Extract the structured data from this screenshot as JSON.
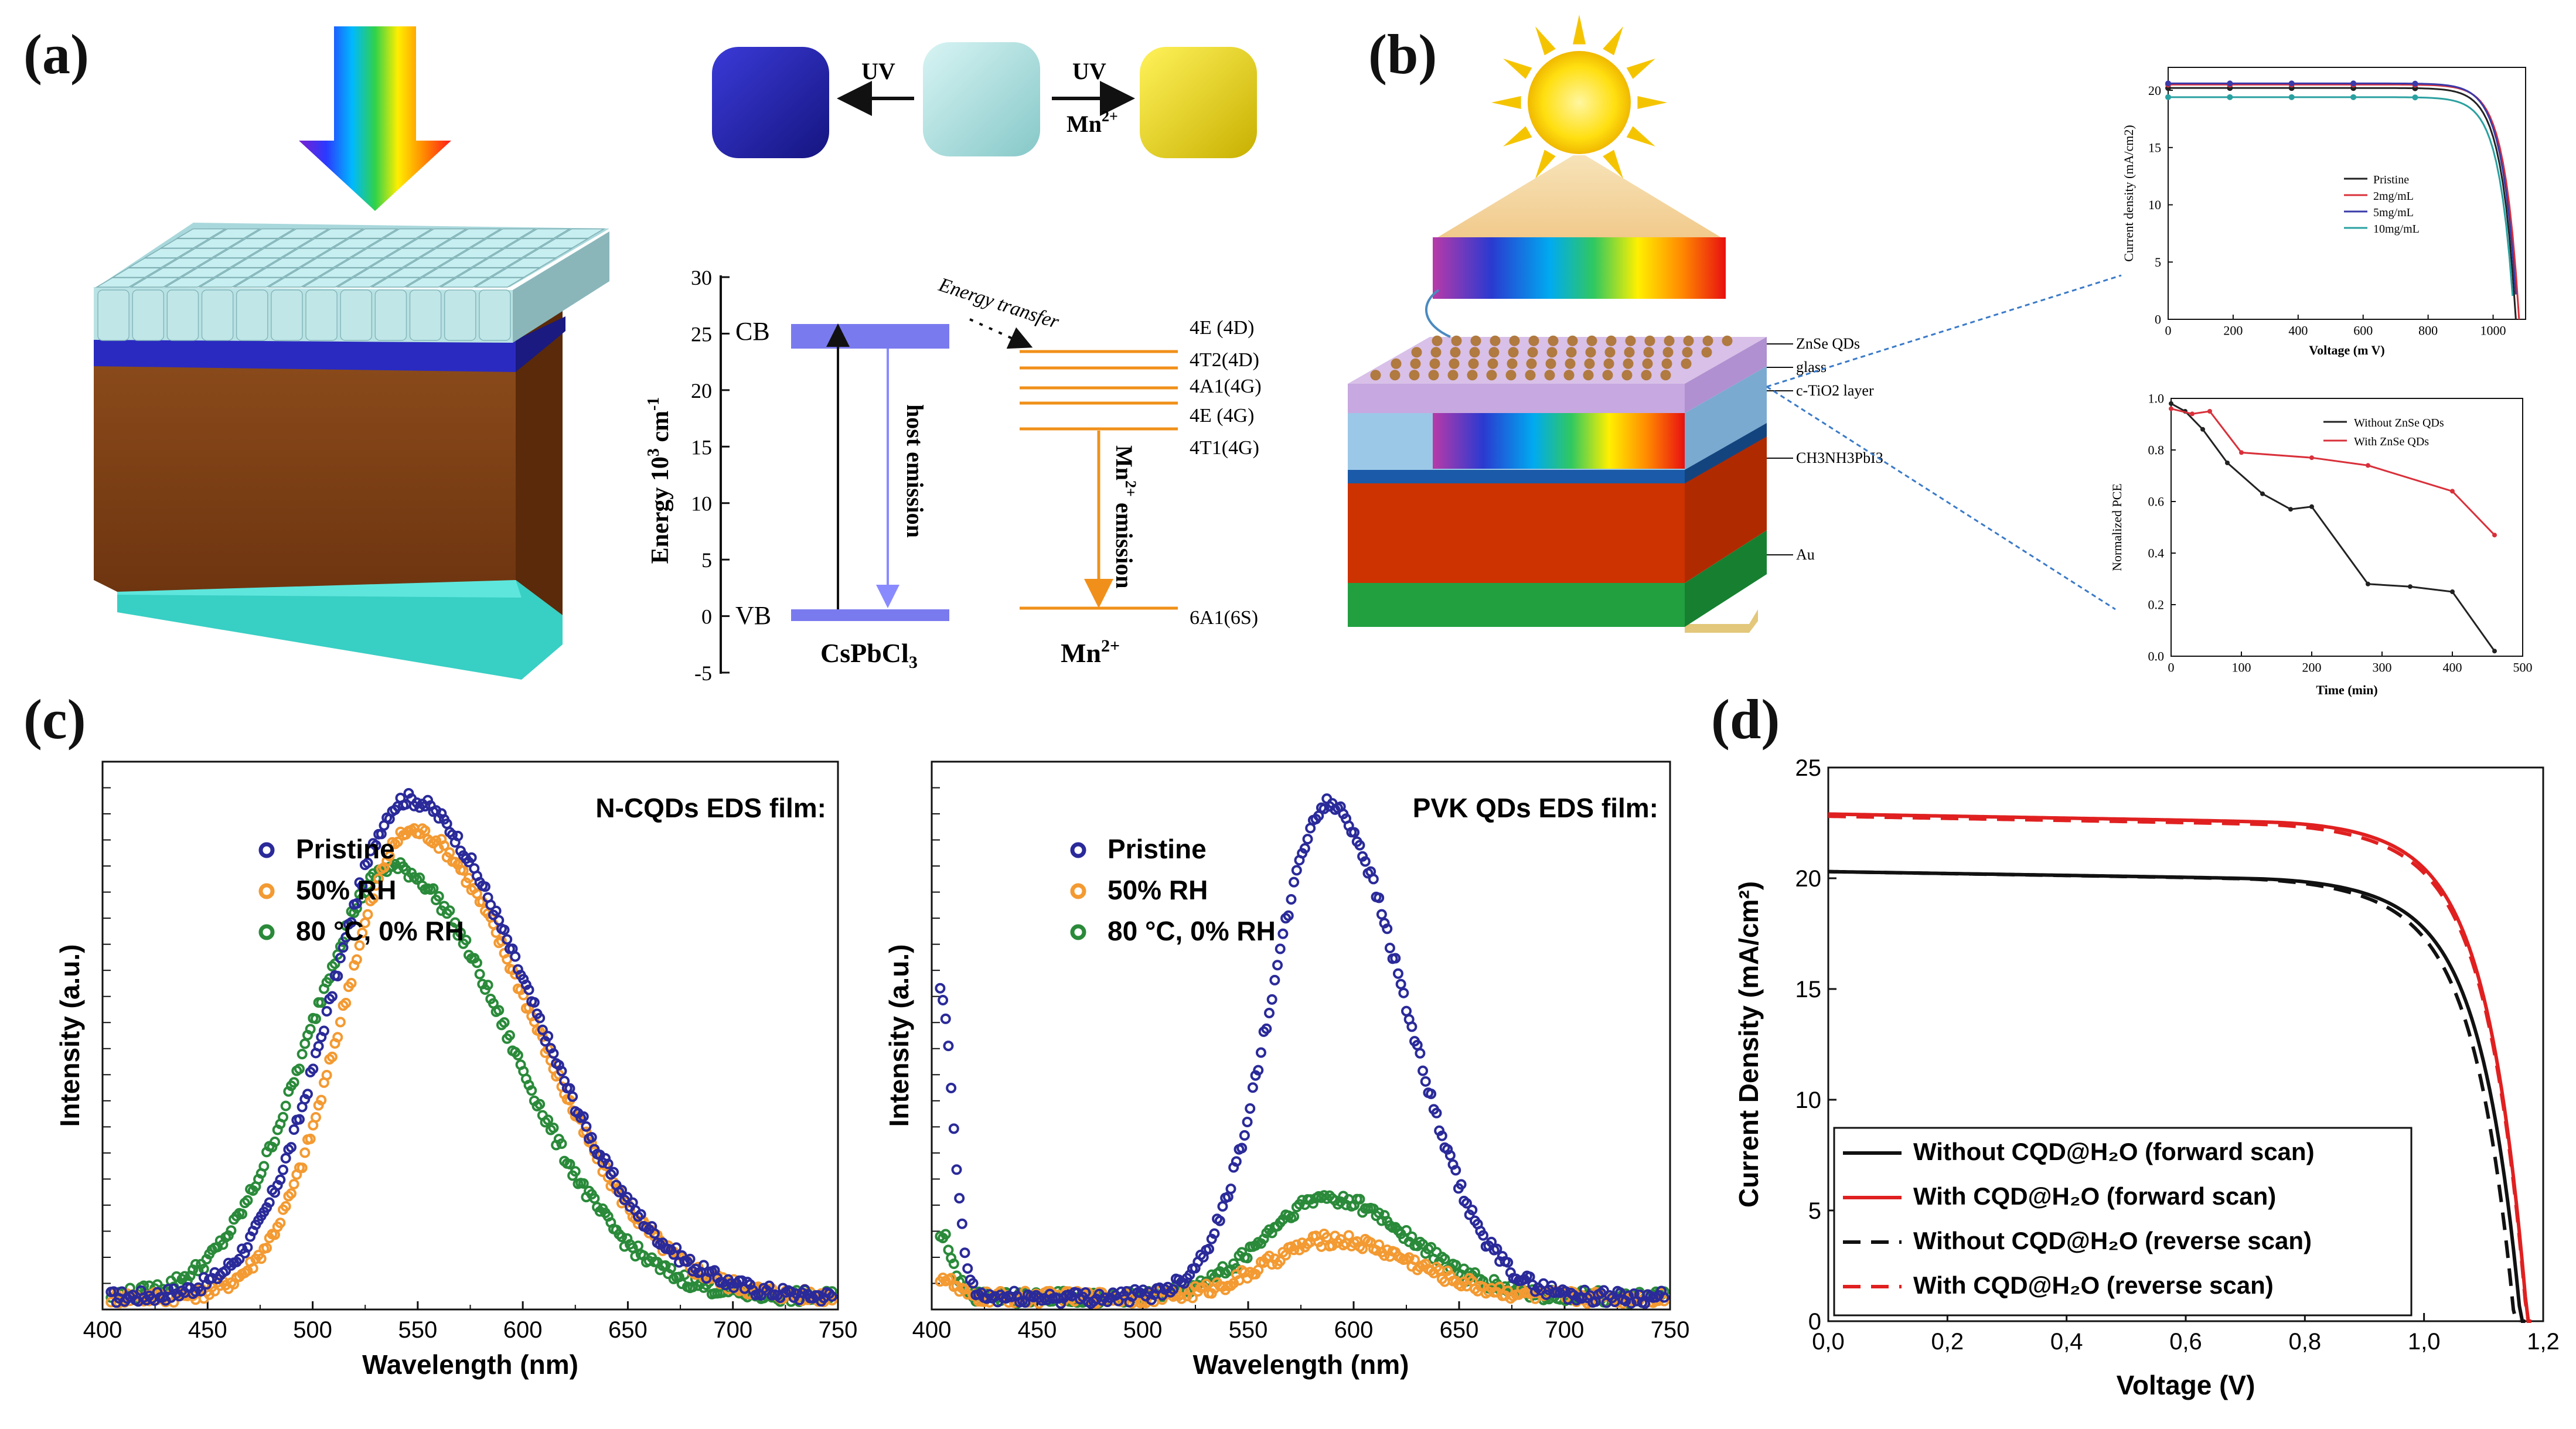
{
  "panels": {
    "a": {
      "label": "(a)",
      "transform_uv_left": "UV",
      "transform_uv_right": "UV",
      "transform_mn": "Mn",
      "transform_mn_sup": "2+",
      "energy_axis_label": "Energy 10",
      "energy_axis_label_sup": "3",
      "energy_axis_label_unit": " cm",
      "energy_axis_label_sup2": "-1",
      "energy_ticks": [
        "30",
        "25",
        "20",
        "15",
        "10",
        "5",
        "0",
        "-5"
      ],
      "cb": "CB",
      "vb": "VB",
      "energy_transfer": "Energy transfer",
      "host_emission": "host emission",
      "mn_emission": "Mn",
      "mn_emission_sup": "2+",
      "mn_emission_suffix": " emission",
      "host_name": "CsPbCl",
      "host_sub": "3",
      "ion_name": "Mn",
      "ion_sup": "2+",
      "levels": [
        "4E (4D)",
        "4T2(4D)",
        "4A1(4G)",
        "4E (4G)",
        "4T1(4G)",
        "6A1(6S)"
      ]
    },
    "b": {
      "label": "(b)",
      "layers": [
        "ZnSe QDs",
        "glass",
        "c-TiO2 layer",
        "CH3NH3PbI3",
        "Au"
      ],
      "jv_chart": {
        "type": "line",
        "xlabel": "Voltage (m V)",
        "ylabel": "Current density (mA/cm2)",
        "xticks": [
          "0",
          "200",
          "400",
          "600",
          "800",
          "1000"
        ],
        "yticks": [
          "0",
          "5",
          "10",
          "15",
          "20"
        ],
        "xlim": [
          0,
          1100
        ],
        "ylim": [
          0,
          22
        ],
        "series": [
          {
            "name": "Pristine",
            "color": "#222222",
            "jsc": 20.2,
            "voc": 1070
          },
          {
            "name": "2mg/mL",
            "color": "#d9303a",
            "jsc": 20.5,
            "voc": 1080
          },
          {
            "name": "5mg/mL",
            "color": "#3a3aa8",
            "jsc": 20.6,
            "voc": 1075
          },
          {
            "name": "10mg/mL",
            "color": "#2aa0a0",
            "jsc": 19.4,
            "voc": 1065
          }
        ]
      },
      "pce_chart": {
        "type": "line",
        "xlabel": "Time (min)",
        "ylabel": "Normalized PCE",
        "xticks": [
          "0",
          "100",
          "200",
          "300",
          "400",
          "500"
        ],
        "yticks": [
          "0.0",
          "0.2",
          "0.4",
          "0.6",
          "0.8",
          "1.0"
        ],
        "xlim": [
          0,
          500
        ],
        "ylim": [
          0,
          1.0
        ],
        "series": [
          {
            "name": "Without ZnSe QDs",
            "color": "#222222",
            "x": [
              0,
              20,
              45,
              80,
              130,
              170,
              200,
              280,
              340,
              400,
              460
            ],
            "y": [
              0.98,
              0.95,
              0.88,
              0.75,
              0.63,
              0.57,
              0.58,
              0.28,
              0.27,
              0.25,
              0.02
            ]
          },
          {
            "name": "With ZnSe QDs",
            "color": "#d9303a",
            "x": [
              0,
              30,
              55,
              100,
              200,
              280,
              400,
              460
            ],
            "y": [
              0.96,
              0.94,
              0.95,
              0.79,
              0.77,
              0.74,
              0.64,
              0.47
            ]
          }
        ]
      }
    },
    "c": {
      "label": "(c)",
      "left": {
        "type": "scatter",
        "legend_title": "N-CQDs EDS film:",
        "xlabel": "Wavelength (nm)",
        "ylabel": "Intensity (a.u.)",
        "xticks": [
          "400",
          "450",
          "500",
          "550",
          "600",
          "650",
          "700",
          "750"
        ],
        "xlim": [
          400,
          750
        ],
        "ylim": [
          0,
          1.0
        ],
        "series": [
          {
            "name": "Pristine",
            "color": "#2a2a9a",
            "peak": 545,
            "amp": 0.95,
            "sigma_l": 36,
            "sigma_r": 58
          },
          {
            "name": "50% RH",
            "color": "#f39a32",
            "peak": 547,
            "amp": 0.89,
            "sigma_l": 33,
            "sigma_r": 57
          },
          {
            "name": "80 °C, 0% RH",
            "color": "#2a8a3a",
            "peak": 538,
            "amp": 0.82,
            "sigma_l": 40,
            "sigma_r": 55
          }
        ]
      },
      "right": {
        "type": "scatter",
        "legend_title": "PVK QDs EDS film:",
        "xlabel": "Wavelength (nm)",
        "ylabel": "Intensity (a.u.)",
        "xticks": [
          "400",
          "450",
          "500",
          "550",
          "600",
          "650",
          "700",
          "750"
        ],
        "xlim": [
          400,
          750
        ],
        "ylim": [
          0,
          1.0
        ],
        "series": [
          {
            "name": "Pristine",
            "color": "#2a2a9a",
            "peak": 588,
            "amp": 0.94,
            "sigma_l": 27,
            "sigma_r": 36,
            "uv_peak": 0.58
          },
          {
            "name": "50% RH",
            "color": "#f39a32",
            "peak": 590,
            "amp": 0.11,
            "sigma_l": 30,
            "sigma_r": 38,
            "uv_peak": 0.04
          },
          {
            "name": "80 °C, 0% RH",
            "color": "#2a8a3a",
            "peak": 588,
            "amp": 0.19,
            "sigma_l": 30,
            "sigma_r": 38,
            "uv_peak": 0.12
          }
        ]
      }
    },
    "d": {
      "label": "(d)",
      "type": "line",
      "xlabel": "Voltage (V)",
      "ylabel": "Current Density (mA/cm²)",
      "xticks": [
        "0,0",
        "0,2",
        "0,4",
        "0,6",
        "0,8",
        "1,0",
        "1,2"
      ],
      "yticks": [
        "0",
        "5",
        "10",
        "15",
        "20",
        "25"
      ],
      "xlim": [
        0,
        1.2
      ],
      "ylim": [
        0,
        25
      ],
      "legend": [
        "Without CQD@H₂O (forward scan)",
        "With CQD@H₂O (forward scan)",
        "Without CQD@H₂O (reverse scan)",
        "With CQD@H₂O (reverse scan)"
      ],
      "series": [
        {
          "name": "Without CQD@H₂O (forward scan)",
          "color": "#111111",
          "dash": false,
          "jsc": 20.3,
          "voc": 1.17,
          "knee": 0.96
        },
        {
          "name": "With CQD@H₂O (forward scan)",
          "color": "#e02020",
          "dash": false,
          "jsc": 22.9,
          "voc": 1.18,
          "knee": 0.99
        },
        {
          "name": "Without CQD@H₂O (reverse scan)",
          "color": "#111111",
          "dash": true,
          "jsc": 20.3,
          "voc": 1.16,
          "knee": 0.92
        },
        {
          "name": "With CQD@H₂O (reverse scan)",
          "color": "#e02020",
          "dash": true,
          "jsc": 22.8,
          "voc": 1.18,
          "knee": 0.96
        }
      ]
    }
  }
}
